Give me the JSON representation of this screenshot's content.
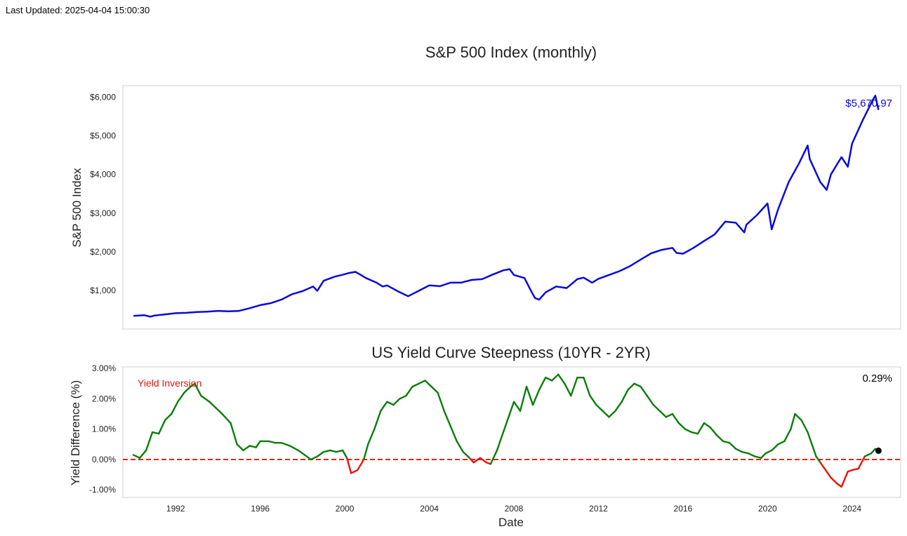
{
  "last_updated": "Last Updated: 2025-04-04 15:00:30",
  "chart_data": [
    {
      "type": "line",
      "title": "S&P 500 Index (monthly)",
      "ylabel": "S&P 500 Index",
      "xlim": [
        1989.5,
        2026.3
      ],
      "ylim": [
        0,
        6300
      ],
      "yticks": [
        {
          "value": 1000,
          "label": "$1,000"
        },
        {
          "value": 2000,
          "label": "$2,000"
        },
        {
          "value": 3000,
          "label": "$3,000"
        },
        {
          "value": 4000,
          "label": "$4,000"
        },
        {
          "value": 5000,
          "label": "$5,000"
        },
        {
          "value": 6000,
          "label": "$6,000"
        }
      ],
      "line_color": "#0a0ad6",
      "last_value_label": "$5,670.97",
      "series": [
        {
          "name": "S&P 500",
          "x": [
            1990.0,
            1990.5,
            1990.8,
            1991.0,
            1991.5,
            1992.0,
            1992.5,
            1993.0,
            1993.5,
            1994.0,
            1994.5,
            1995.0,
            1995.5,
            1996.0,
            1996.5,
            1997.0,
            1997.5,
            1997.8,
            1998.0,
            1998.5,
            1998.7,
            1999.0,
            1999.5,
            2000.0,
            2000.2,
            2000.5,
            2000.7,
            2001.0,
            2001.5,
            2001.8,
            2002.0,
            2002.5,
            2002.8,
            2003.0,
            2003.5,
            2004.0,
            2004.5,
            2005.0,
            2005.5,
            2006.0,
            2006.5,
            2007.0,
            2007.5,
            2007.8,
            2008.0,
            2008.5,
            2008.8,
            2009.0,
            2009.2,
            2009.5,
            2010.0,
            2010.5,
            2011.0,
            2011.3,
            2011.7,
            2012.0,
            2012.5,
            2013.0,
            2013.5,
            2014.0,
            2014.5,
            2015.0,
            2015.5,
            2015.7,
            2016.0,
            2016.5,
            2017.0,
            2017.5,
            2018.0,
            2018.5,
            2018.9,
            2019.0,
            2019.5,
            2020.0,
            2020.2,
            2020.5,
            2021.0,
            2021.5,
            2021.9,
            2022.0,
            2022.5,
            2022.8,
            2023.0,
            2023.5,
            2023.8,
            2024.0,
            2024.5,
            2025.0,
            2025.1,
            2025.25
          ],
          "y": [
            340,
            360,
            320,
            350,
            380,
            410,
            420,
            440,
            450,
            470,
            460,
            470,
            540,
            620,
            670,
            760,
            900,
            950,
            980,
            1100,
            990,
            1250,
            1350,
            1420,
            1450,
            1480,
            1420,
            1320,
            1200,
            1100,
            1130,
            980,
            900,
            850,
            990,
            1130,
            1110,
            1200,
            1200,
            1270,
            1290,
            1410,
            1520,
            1550,
            1400,
            1320,
            1000,
            800,
            760,
            950,
            1100,
            1060,
            1290,
            1330,
            1200,
            1300,
            1400,
            1500,
            1630,
            1800,
            1960,
            2050,
            2100,
            1970,
            1950,
            2100,
            2280,
            2450,
            2780,
            2750,
            2500,
            2700,
            2950,
            3250,
            2580,
            3100,
            3800,
            4300,
            4750,
            4400,
            3800,
            3600,
            4000,
            4450,
            4200,
            4800,
            5400,
            5950,
            6040,
            5670.97
          ]
        }
      ]
    },
    {
      "type": "line",
      "title": "US Yield Curve Steepness (10YR - 2YR)",
      "xlabel": "Date",
      "ylabel": "Yield Difference (%)",
      "xlim": [
        1989.5,
        2026.3
      ],
      "ylim": [
        -1.25,
        3.05
      ],
      "yticks": [
        {
          "value": -1,
          "label": "-1.00%"
        },
        {
          "value": 0,
          "label": "0.00%"
        },
        {
          "value": 1,
          "label": "1.00%"
        },
        {
          "value": 2,
          "label": "2.00%"
        },
        {
          "value": 3,
          "label": "3.00%"
        }
      ],
      "xticks": [
        {
          "value": 1992,
          "label": "1992"
        },
        {
          "value": 1996,
          "label": "1996"
        },
        {
          "value": 2000,
          "label": "2000"
        },
        {
          "value": 2004,
          "label": "2004"
        },
        {
          "value": 2008,
          "label": "2008"
        },
        {
          "value": 2012,
          "label": "2012"
        },
        {
          "value": 2016,
          "label": "2016"
        },
        {
          "value": 2020,
          "label": "2020"
        },
        {
          "value": 2024,
          "label": "2024"
        }
      ],
      "positive_color": "#0a7d0a",
      "negative_color": "#e8140a",
      "zero_line_color": "#e8140a",
      "annotation": "Yield Inversion",
      "last_value_label": "0.29%",
      "last_point": {
        "x": 2025.25,
        "y": 0.29
      },
      "series": [
        {
          "name": "10YR - 2YR",
          "x": [
            1990.0,
            1990.3,
            1990.6,
            1990.9,
            1991.2,
            1991.5,
            1991.8,
            1992.1,
            1992.4,
            1992.7,
            1992.9,
            1993.2,
            1993.6,
            1993.9,
            1994.2,
            1994.6,
            1994.9,
            1995.2,
            1995.5,
            1995.8,
            1996.0,
            1996.4,
            1996.7,
            1997.0,
            1997.4,
            1997.8,
            1998.1,
            1998.4,
            1998.7,
            1999.0,
            1999.3,
            1999.6,
            1999.9,
            2000.1,
            2000.3,
            2000.6,
            2000.9,
            2001.1,
            2001.4,
            2001.7,
            2002.0,
            2002.3,
            2002.6,
            2002.9,
            2003.2,
            2003.5,
            2003.8,
            2004.1,
            2004.4,
            2004.7,
            2005.0,
            2005.3,
            2005.6,
            2005.9,
            2006.1,
            2006.4,
            2006.7,
            2006.9,
            2007.2,
            2007.5,
            2007.8,
            2008.0,
            2008.3,
            2008.6,
            2008.9,
            2009.2,
            2009.5,
            2009.8,
            2010.1,
            2010.4,
            2010.7,
            2011.0,
            2011.3,
            2011.6,
            2011.9,
            2012.2,
            2012.5,
            2012.8,
            2013.1,
            2013.4,
            2013.7,
            2014.0,
            2014.3,
            2014.6,
            2014.9,
            2015.2,
            2015.5,
            2015.8,
            2016.1,
            2016.4,
            2016.7,
            2017.0,
            2017.3,
            2017.6,
            2017.9,
            2018.2,
            2018.5,
            2018.8,
            2019.1,
            2019.4,
            2019.7,
            2019.9,
            2020.2,
            2020.5,
            2020.8,
            2021.1,
            2021.3,
            2021.6,
            2021.9,
            2022.1,
            2022.3,
            2022.5,
            2022.7,
            2023.0,
            2023.3,
            2023.5,
            2023.8,
            2024.0,
            2024.3,
            2024.6,
            2024.9,
            2025.1,
            2025.25
          ],
          "y": [
            0.15,
            0.05,
            0.3,
            0.9,
            0.85,
            1.3,
            1.5,
            1.9,
            2.2,
            2.4,
            2.5,
            2.1,
            1.9,
            1.7,
            1.5,
            1.2,
            0.5,
            0.3,
            0.45,
            0.4,
            0.6,
            0.6,
            0.55,
            0.55,
            0.45,
            0.3,
            0.15,
            0.0,
            0.1,
            0.25,
            0.3,
            0.25,
            0.3,
            0.05,
            -0.45,
            -0.35,
            0.0,
            0.5,
            1.0,
            1.6,
            1.9,
            1.8,
            2.0,
            2.1,
            2.4,
            2.5,
            2.6,
            2.4,
            2.2,
            1.6,
            1.1,
            0.6,
            0.25,
            0.05,
            -0.1,
            0.05,
            -0.1,
            -0.15,
            0.3,
            0.9,
            1.5,
            1.9,
            1.6,
            2.4,
            1.8,
            2.3,
            2.7,
            2.6,
            2.8,
            2.5,
            2.1,
            2.7,
            2.7,
            2.1,
            1.8,
            1.6,
            1.4,
            1.6,
            1.9,
            2.3,
            2.5,
            2.4,
            2.1,
            1.8,
            1.6,
            1.4,
            1.5,
            1.2,
            1.0,
            0.9,
            0.85,
            1.2,
            1.05,
            0.8,
            0.6,
            0.55,
            0.35,
            0.25,
            0.2,
            0.1,
            0.05,
            0.2,
            0.3,
            0.5,
            0.6,
            1.0,
            1.5,
            1.3,
            0.9,
            0.5,
            0.1,
            -0.1,
            -0.3,
            -0.6,
            -0.8,
            -0.9,
            -0.4,
            -0.35,
            -0.3,
            0.1,
            0.2,
            0.35,
            0.29
          ]
        }
      ]
    }
  ]
}
